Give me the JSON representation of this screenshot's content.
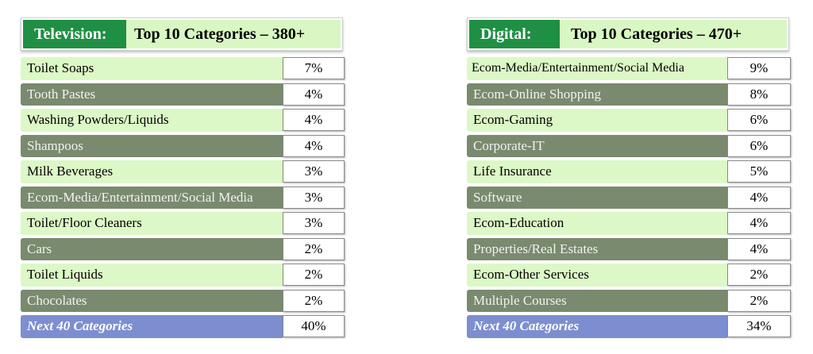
{
  "television": {
    "tag": "Television:",
    "title": "Top 10 Categories – 380+",
    "rows": [
      {
        "label": "Toilet Soaps",
        "value": "7%"
      },
      {
        "label": "Tooth Pastes",
        "value": "4%"
      },
      {
        "label": "Washing Powders/Liquids",
        "value": "4%"
      },
      {
        "label": "Shampoos",
        "value": "4%"
      },
      {
        "label": "Milk Beverages",
        "value": "3%"
      },
      {
        "label": "Ecom-Media/Entertainment/Social Media",
        "value": "3%"
      },
      {
        "label": "Toilet/Floor Cleaners",
        "value": "3%"
      },
      {
        "label": "Cars",
        "value": "2%"
      },
      {
        "label": "Toilet Liquids",
        "value": "2%"
      },
      {
        "label": "Chocolates",
        "value": "2%"
      }
    ],
    "next": {
      "label": "Next 40 Categories",
      "value": "40%"
    }
  },
  "digital": {
    "tag": "Digital:",
    "title": "Top 10 Categories – 470+",
    "rows": [
      {
        "label": "Ecom-Media/Entertainment/Social Media",
        "value": "9%"
      },
      {
        "label": "Ecom-Online Shopping",
        "value": "8%"
      },
      {
        "label": "Ecom-Gaming",
        "value": "6%"
      },
      {
        "label": "Corporate-IT",
        "value": "6%"
      },
      {
        "label": "Life Insurance",
        "value": "5%"
      },
      {
        "label": "Software",
        "value": "4%"
      },
      {
        "label": "Ecom-Education",
        "value": "4%"
      },
      {
        "label": "Properties/Real Estates",
        "value": "4%"
      },
      {
        "label": "Ecom-Other Services",
        "value": "2%"
      },
      {
        "label": "Multiple Courses",
        "value": "2%"
      }
    ],
    "next": {
      "label": "Next 40 Categories",
      "value": "34%"
    }
  }
}
